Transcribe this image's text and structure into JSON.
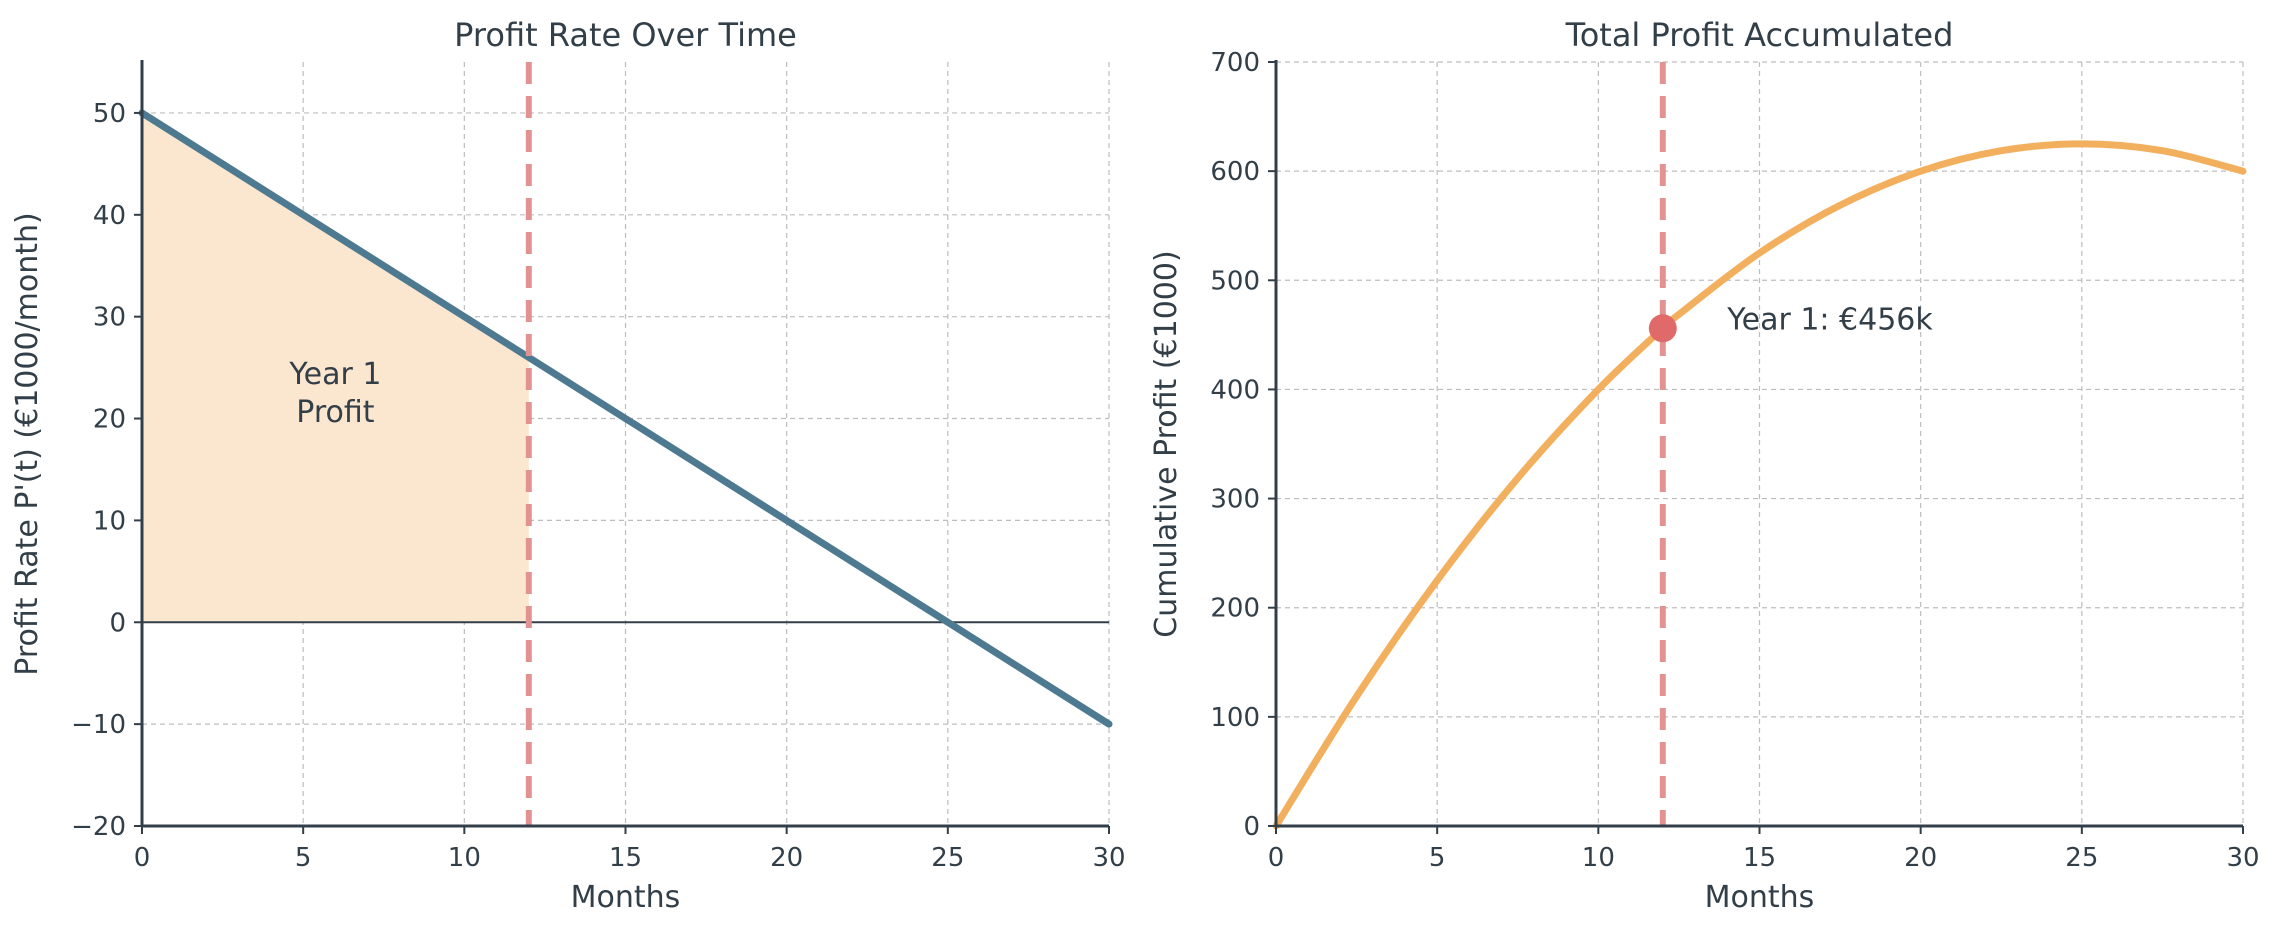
{
  "chart_data": [
    {
      "type": "line",
      "title": "Profit Rate Over Time",
      "xlabel": "Months",
      "ylabel": "Profit Rate P'(t) (€1000/month)",
      "xlim": [
        0,
        30
      ],
      "ylim": [
        -20,
        55
      ],
      "xticks": [
        0,
        5,
        10,
        15,
        20,
        25,
        30
      ],
      "yticks": [
        -20,
        -10,
        0,
        10,
        20,
        30,
        40,
        50
      ],
      "xtick_labels": [
        "0",
        "5",
        "10",
        "15",
        "20",
        "25",
        "30"
      ],
      "ytick_labels": [
        "−20",
        "−10",
        "0",
        "10",
        "20",
        "30",
        "40",
        "50"
      ],
      "grid": true,
      "series": [
        {
          "x": [
            0,
            5,
            10,
            12,
            15,
            20,
            25,
            30
          ],
          "y": [
            50,
            40,
            30,
            26,
            20,
            10,
            0,
            -10
          ],
          "color": "#4e7a91"
        }
      ],
      "shaded_area": {
        "x_from": 0,
        "x_to": 12,
        "color": "#fbe6cf"
      },
      "zero_line": 0,
      "vline": {
        "x": 12,
        "color": "#e39292"
      },
      "annotation": {
        "lines": [
          "Year 1",
          "Profit"
        ],
        "x": 6,
        "y": 23
      }
    },
    {
      "type": "line",
      "title": "Total Profit Accumulated",
      "xlabel": "Months",
      "ylabel": "Cumulative Profit (€1000)",
      "xlim": [
        0,
        30
      ],
      "ylim": [
        0,
        700
      ],
      "xticks": [
        0,
        5,
        10,
        15,
        20,
        25,
        30
      ],
      "yticks": [
        0,
        100,
        200,
        300,
        400,
        500,
        600,
        700
      ],
      "xtick_labels": [
        "0",
        "5",
        "10",
        "15",
        "20",
        "25",
        "30"
      ],
      "ytick_labels": [
        "0",
        "100",
        "200",
        "300",
        "400",
        "500",
        "600",
        "700"
      ],
      "grid": true,
      "series": [
        {
          "x": [
            0,
            2.5,
            5,
            7.5,
            10,
            12,
            12.5,
            15,
            17.5,
            20,
            22.5,
            25,
            27.5,
            30
          ],
          "y": [
            0,
            118.75,
            225,
            318.75,
            400,
            456,
            468.75,
            525,
            568.75,
            600,
            618.75,
            625,
            618.75,
            600
          ],
          "color": "#f2b05e"
        }
      ],
      "vline": {
        "x": 12,
        "color": "#e39292"
      },
      "marker": {
        "x": 12,
        "y": 456,
        "color": "#e06a6a"
      },
      "annotation": {
        "text": "Year 1: €456k",
        "x": 14,
        "y": 456
      }
    }
  ]
}
